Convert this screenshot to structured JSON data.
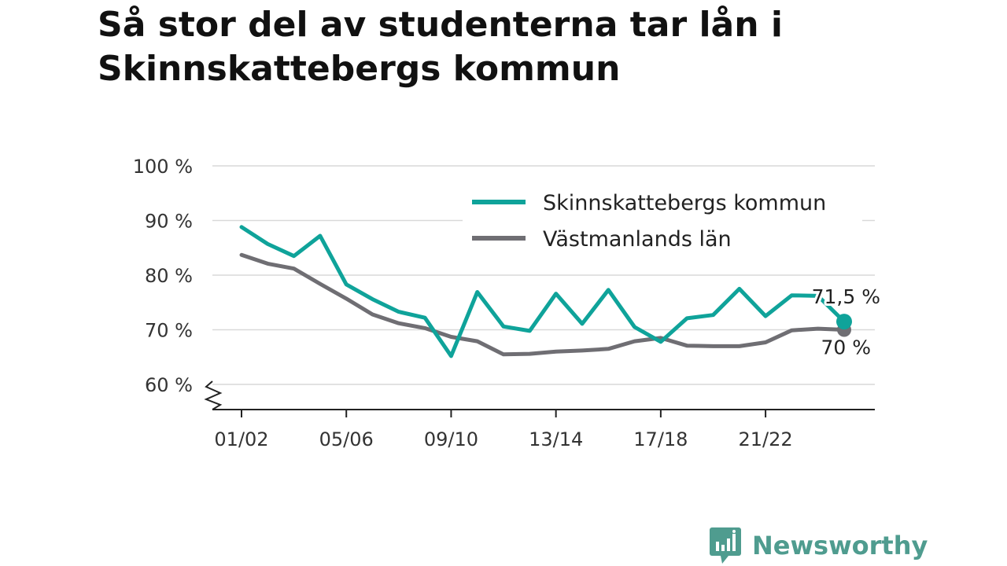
{
  "title": "Så stor del av studenterna tar lån i Skinnskattebergs kommun",
  "brand": {
    "name": "Newsworthy",
    "color": "#4f9c8f"
  },
  "chart_data": {
    "type": "line",
    "title": "Så stor del av studenterna tar lån i Skinnskattebergs kommun",
    "xlabel": "",
    "ylabel": "",
    "ylim": [
      55,
      100
    ],
    "yticks": [
      60,
      70,
      80,
      90,
      100
    ],
    "ytick_labels": [
      "60 %",
      "70 %",
      "80 %",
      "90 %",
      "100 %"
    ],
    "y_axis_break": true,
    "grid": true,
    "legend_position": "top-right",
    "x": [
      "01/02",
      "02/03",
      "03/04",
      "04/05",
      "05/06",
      "06/07",
      "07/08",
      "08/09",
      "09/10",
      "10/11",
      "11/12",
      "12/13",
      "13/14",
      "14/15",
      "15/16",
      "16/17",
      "17/18",
      "18/19",
      "19/20",
      "20/21",
      "21/22",
      "22/23",
      "23/24",
      "24/25"
    ],
    "xtick_labels": [
      "01/02",
      "05/06",
      "09/10",
      "13/14",
      "17/18",
      "21/22"
    ],
    "series": [
      {
        "name": "Skinnskattebergs kommun",
        "color": "#0fa39a",
        "values": [
          88.8,
          85.7,
          83.5,
          87.2,
          78.3,
          75.6,
          73.3,
          72.2,
          65.2,
          76.9,
          70.6,
          69.8,
          76.6,
          71.1,
          77.3,
          70.5,
          67.8,
          72.1,
          72.7,
          77.5,
          72.5,
          76.3,
          76.2,
          71.5
        ],
        "end_label": "71,5 %"
      },
      {
        "name": "Västmanlands län",
        "color": "#6f6e73",
        "values": [
          83.7,
          82.1,
          81.2,
          78.4,
          75.7,
          72.8,
          71.2,
          70.3,
          68.7,
          67.9,
          65.5,
          65.6,
          66.0,
          66.2,
          66.5,
          67.9,
          68.5,
          67.1,
          67.0,
          67.0,
          67.7,
          69.9,
          70.2,
          70.0
        ],
        "end_label": "70 %"
      }
    ]
  }
}
